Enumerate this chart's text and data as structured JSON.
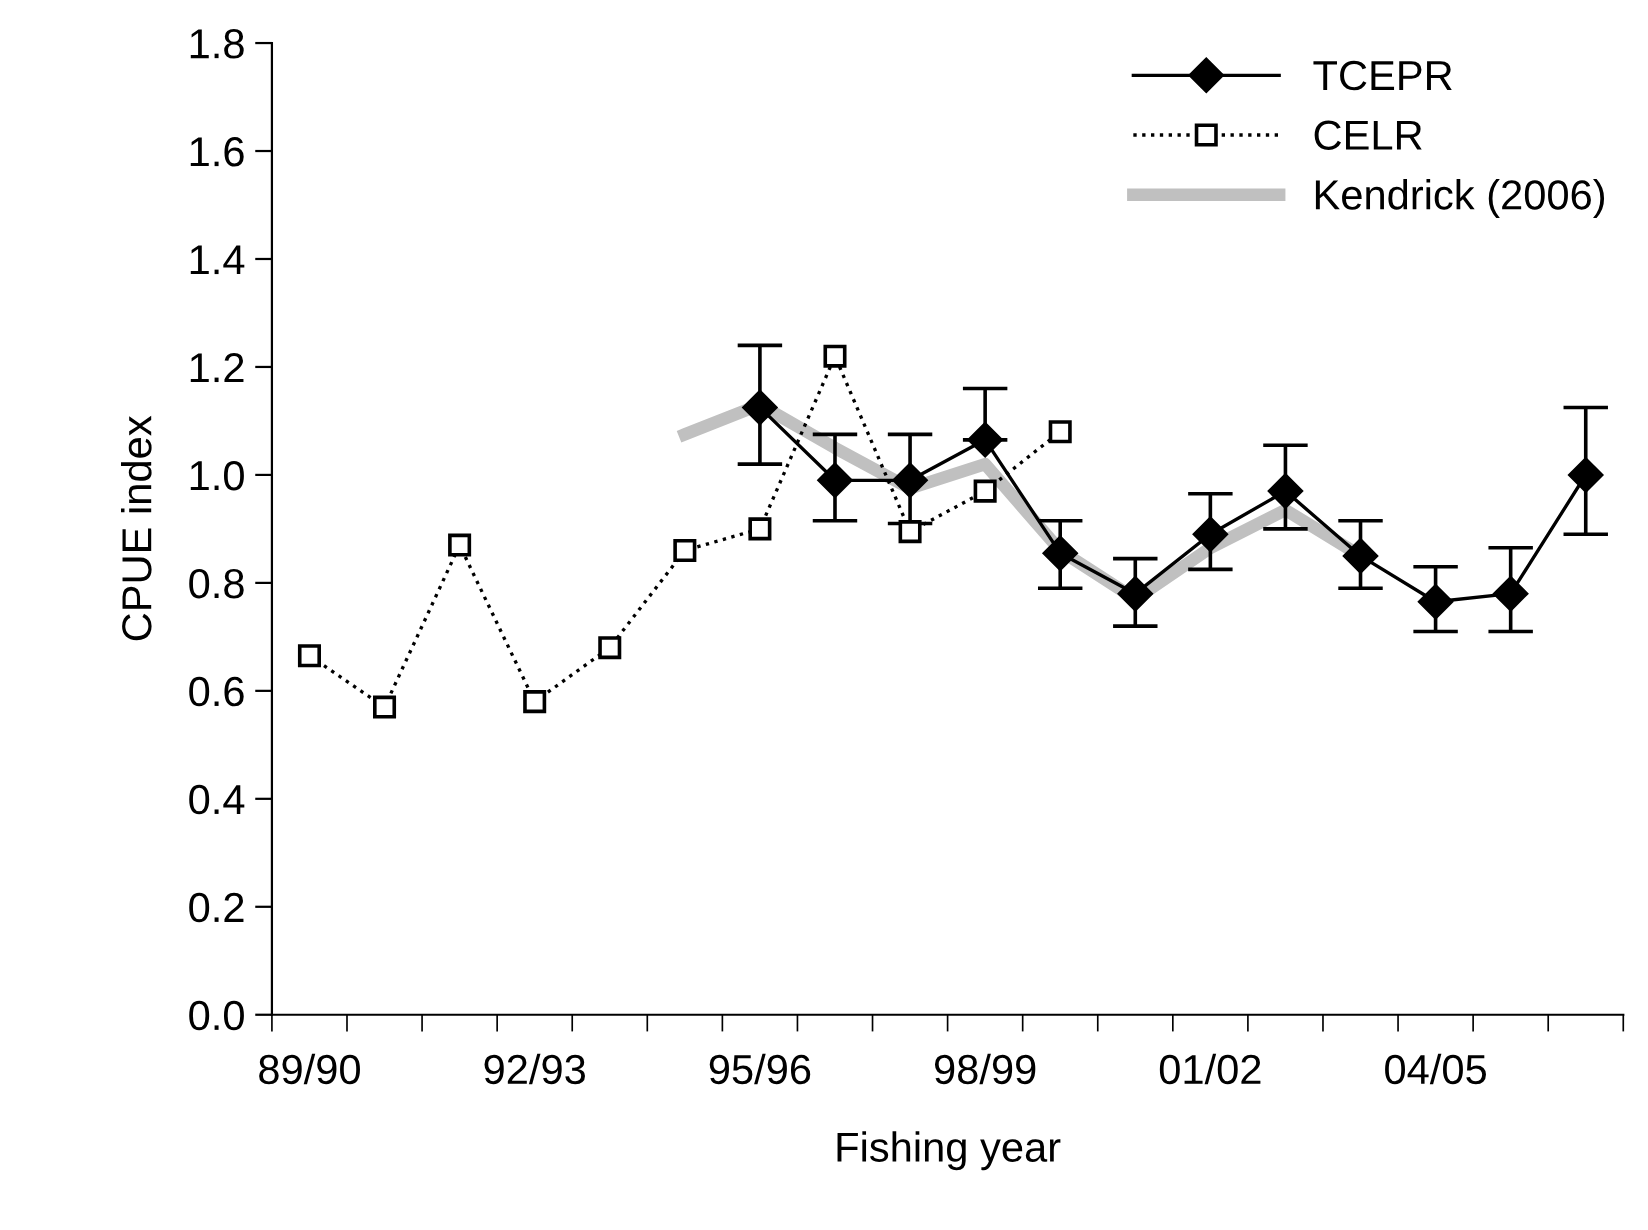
{
  "chart_data": {
    "type": "line",
    "xlabel": "Fishing year",
    "ylabel": "CPUE index",
    "categories": [
      "89/90",
      null,
      null,
      "92/93",
      null,
      null,
      "95/96",
      null,
      null,
      "98/99",
      null,
      null,
      "01/02",
      null,
      null,
      "04/05",
      null,
      null
    ],
    "ylim": [
      0,
      1.8
    ],
    "yticks": [
      {
        "value": 0,
        "label": "0.0"
      },
      0.2,
      0.4,
      0.6,
      0.8,
      {
        "value": 1,
        "label": "1.0"
      },
      1.2,
      1.4,
      1.6,
      1.8
    ],
    "grid": false,
    "legend": "top right",
    "series": [
      {
        "name": "TCEPR",
        "color": "#000000",
        "marker": "diamond",
        "line_style": "solid",
        "values": [
          null,
          null,
          null,
          null,
          null,
          null,
          1.125,
          0.99,
          0.99,
          1.065,
          0.855,
          0.78,
          0.89,
          0.97,
          0.85,
          0.765,
          0.78,
          1.0
        ],
        "errors": [
          null,
          null,
          null,
          null,
          null,
          null,
          [
            1.02,
            1.24
          ],
          [
            0.915,
            1.075
          ],
          [
            0.91,
            1.075
          ],
          [
            1.065,
            1.16
          ],
          [
            0.79,
            0.915
          ],
          [
            0.72,
            0.845
          ],
          [
            0.825,
            0.965
          ],
          [
            0.9,
            1.055
          ],
          [
            0.79,
            0.915
          ],
          [
            0.71,
            0.83
          ],
          [
            0.71,
            0.865
          ],
          [
            0.89,
            1.125
          ]
        ]
      },
      {
        "name": "CELR",
        "color": "#000000",
        "marker": "square",
        "line_style": "dotted",
        "values": [
          0.665,
          0.57,
          0.87,
          0.58,
          0.68,
          0.86,
          0.9,
          1.22,
          0.895,
          0.97,
          1.08,
          null,
          null,
          null,
          null,
          null,
          null,
          null
        ]
      },
      {
        "name": "Kendrick (2006)",
        "color": "#c0c0c0",
        "marker": "none",
        "line_style": "solid",
        "values": [
          null,
          null,
          null,
          null,
          null,
          1.075,
          1.13,
          1.05,
          0.975,
          1.02,
          0.86,
          0.77,
          0.865,
          0.935,
          0.85,
          null,
          null,
          null
        ]
      }
    ]
  }
}
